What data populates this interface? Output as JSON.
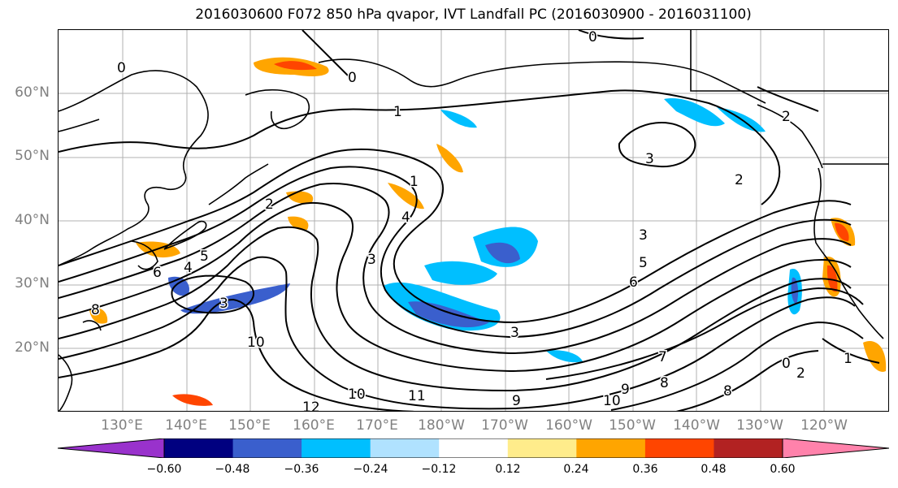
{
  "title": "2016030600 F072 850 hPa qvapor, IVT Landfall PC (2016030900 - 2016031100)",
  "lat_labels": [
    "60°N",
    "50°N",
    "40°N",
    "30°N",
    "20°N"
  ],
  "lon_labels": [
    "130°E",
    "140°E",
    "150°E",
    "160°E",
    "170°E",
    "180°W",
    "170°W",
    "160°W",
    "150°W",
    "140°W",
    "130°W",
    "120°W"
  ],
  "colorbar": {
    "colors": [
      "#9932cc",
      "#000080",
      "#3a5fcd",
      "#00bfff",
      "#b0e2ff",
      "#ffffff",
      "#ffec8b",
      "#ffa500",
      "#ff4500",
      "#b22222",
      "#ff82ab"
    ],
    "tick_labels": [
      "−0.60",
      "−0.48",
      "−0.36",
      "−0.24",
      "−0.12",
      "0.12",
      "0.24",
      "0.36",
      "0.48",
      "0.60"
    ]
  },
  "contour_labels": [
    "0",
    "0",
    "0",
    "1",
    "1",
    "2",
    "2",
    "2",
    "3",
    "3",
    "3",
    "3",
    "4",
    "4",
    "5",
    "5",
    "6",
    "7",
    "8",
    "8",
    "9",
    "9",
    "10",
    "10",
    "10",
    "11",
    "12",
    "2",
    "1",
    "0",
    "6",
    "3",
    "8"
  ],
  "colors": {
    "contour": "#000000",
    "grid": "#b0b0b0",
    "axis_label": "#808080",
    "land": "#000000"
  }
}
